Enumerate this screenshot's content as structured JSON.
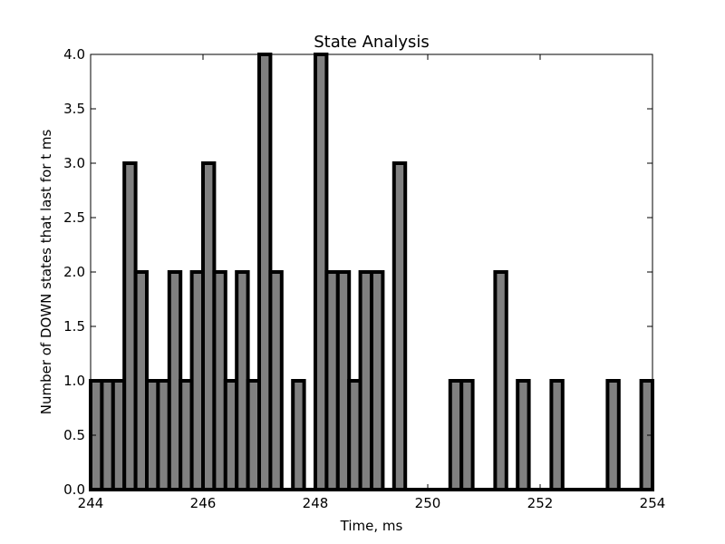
{
  "chart_data": {
    "type": "bar",
    "title": "State Analysis",
    "xlabel": "Time, ms",
    "ylabel": "Number of DOWN states that last for t ms",
    "xlim": [
      244,
      254
    ],
    "ylim": [
      0,
      4
    ],
    "bin_width": 0.2,
    "x_ticks": [
      "244",
      "246",
      "248",
      "250",
      "252",
      "254"
    ],
    "y_ticks": [
      "0.0",
      "0.5",
      "1.0",
      "1.5",
      "2.0",
      "2.5",
      "3.0",
      "3.5",
      "4.0"
    ],
    "bar_color": "#808080",
    "edge_color": "#000000",
    "bins": [
      {
        "x": 244.0,
        "value": 1
      },
      {
        "x": 244.2,
        "value": 1
      },
      {
        "x": 244.4,
        "value": 1
      },
      {
        "x": 244.6,
        "value": 3
      },
      {
        "x": 244.8,
        "value": 2
      },
      {
        "x": 245.0,
        "value": 1
      },
      {
        "x": 245.2,
        "value": 1
      },
      {
        "x": 245.4,
        "value": 2
      },
      {
        "x": 245.6,
        "value": 1
      },
      {
        "x": 245.8,
        "value": 2
      },
      {
        "x": 246.0,
        "value": 3
      },
      {
        "x": 246.2,
        "value": 2
      },
      {
        "x": 246.4,
        "value": 1
      },
      {
        "x": 246.6,
        "value": 2
      },
      {
        "x": 246.8,
        "value": 1
      },
      {
        "x": 247.0,
        "value": 4
      },
      {
        "x": 247.2,
        "value": 2
      },
      {
        "x": 247.4,
        "value": 0
      },
      {
        "x": 247.6,
        "value": 1
      },
      {
        "x": 247.8,
        "value": 0
      },
      {
        "x": 248.0,
        "value": 4
      },
      {
        "x": 248.2,
        "value": 2
      },
      {
        "x": 248.4,
        "value": 2
      },
      {
        "x": 248.6,
        "value": 1
      },
      {
        "x": 248.8,
        "value": 2
      },
      {
        "x": 249.0,
        "value": 2
      },
      {
        "x": 249.2,
        "value": 0
      },
      {
        "x": 249.4,
        "value": 3
      },
      {
        "x": 249.6,
        "value": 0
      },
      {
        "x": 249.8,
        "value": 0
      },
      {
        "x": 250.0,
        "value": 0
      },
      {
        "x": 250.2,
        "value": 0
      },
      {
        "x": 250.4,
        "value": 1
      },
      {
        "x": 250.6,
        "value": 1
      },
      {
        "x": 250.8,
        "value": 0
      },
      {
        "x": 251.0,
        "value": 0
      },
      {
        "x": 251.2,
        "value": 2
      },
      {
        "x": 251.4,
        "value": 0
      },
      {
        "x": 251.6,
        "value": 1
      },
      {
        "x": 251.8,
        "value": 0
      },
      {
        "x": 252.0,
        "value": 0
      },
      {
        "x": 252.2,
        "value": 1
      },
      {
        "x": 252.4,
        "value": 0
      },
      {
        "x": 252.6,
        "value": 0
      },
      {
        "x": 252.8,
        "value": 0
      },
      {
        "x": 253.0,
        "value": 0
      },
      {
        "x": 253.2,
        "value": 1
      },
      {
        "x": 253.4,
        "value": 0
      },
      {
        "x": 253.6,
        "value": 0
      },
      {
        "x": 253.8,
        "value": 1
      }
    ]
  }
}
